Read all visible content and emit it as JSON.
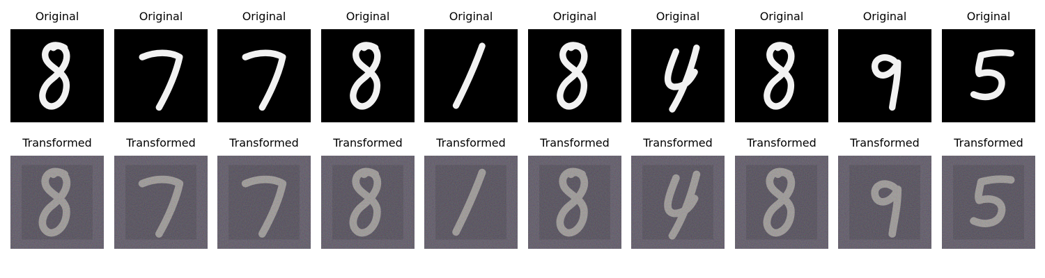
{
  "labels": {
    "original": "Original",
    "transformed": "Transformed"
  },
  "digits": [
    8,
    7,
    7,
    8,
    1,
    8,
    4,
    8,
    9,
    5
  ],
  "colors": {
    "original_bg": "#000000",
    "original_fg": "#f2f2f2",
    "transformed_bg": "#4b4751",
    "transformed_fg": "#b8b6a6"
  }
}
